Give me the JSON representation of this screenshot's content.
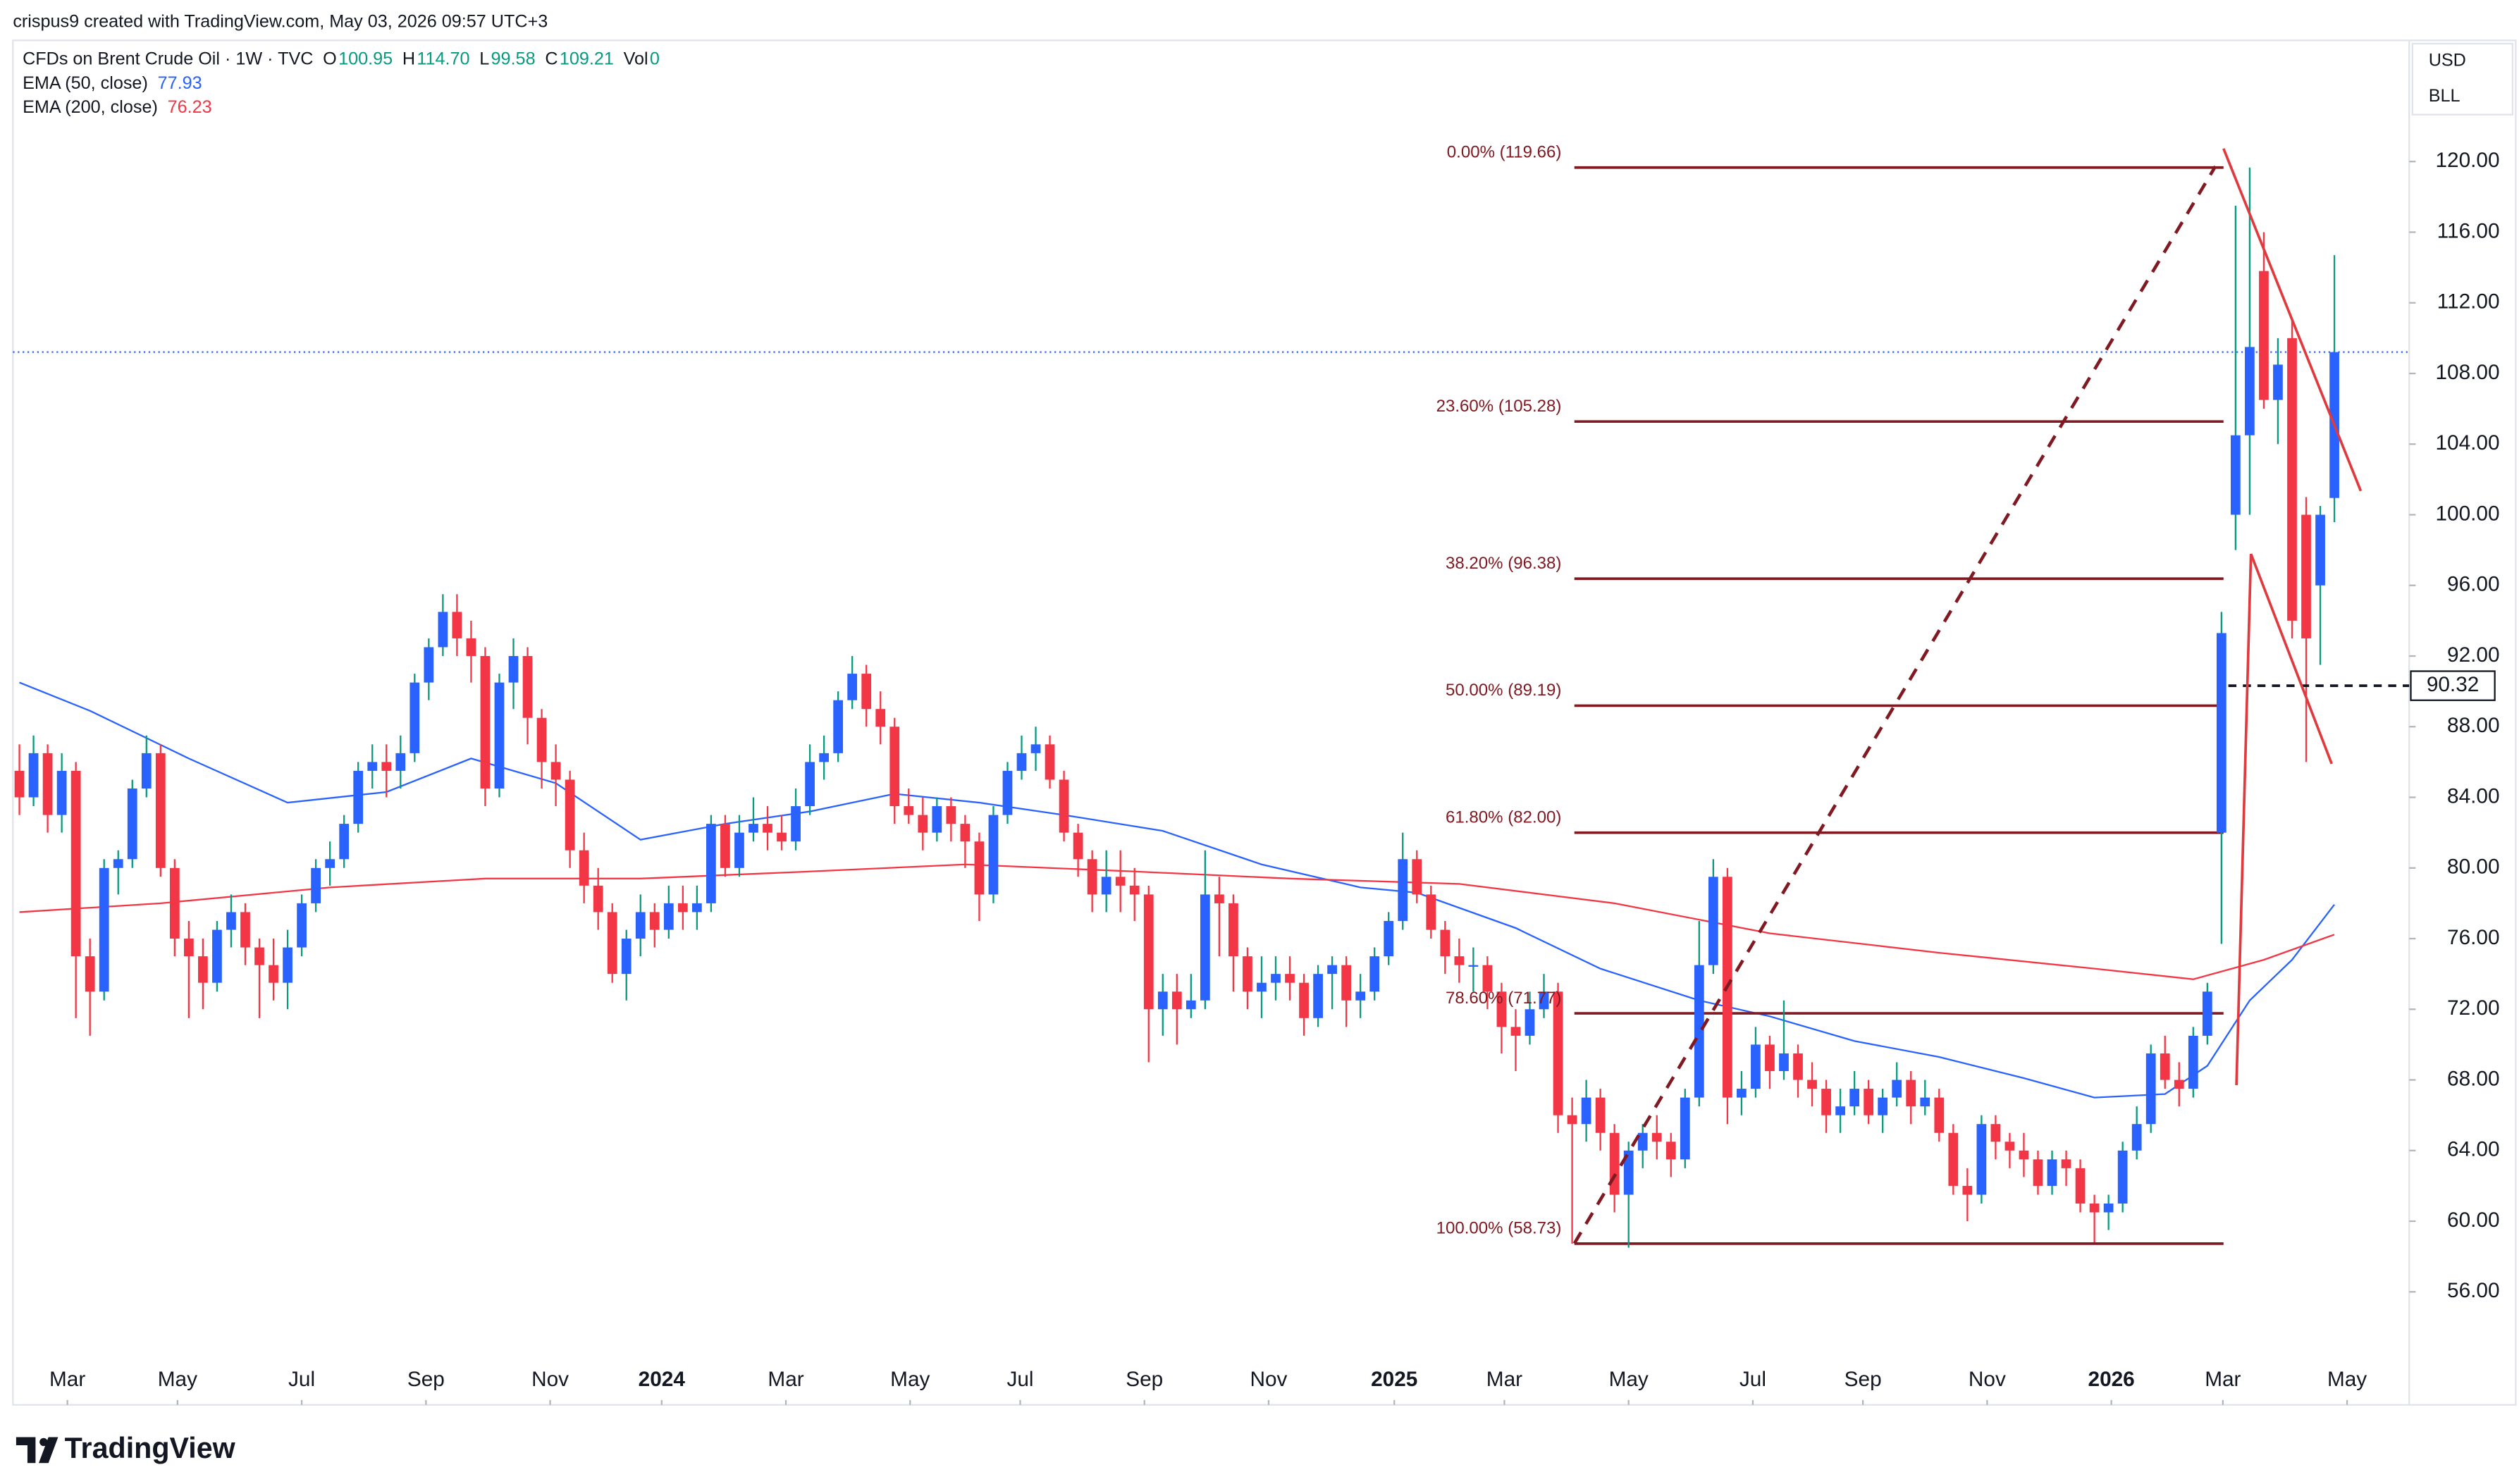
{
  "header": {
    "credit": "crispus9 created with TradingView.com, May 03, 2026 09:57 UTC+3",
    "logo": "TradingView"
  },
  "chart_data": {
    "type": "candlestick",
    "title": "CFDs on Brent Crude Oil · 1W · TVC",
    "currency": "USD",
    "unit": "BLL",
    "legend_keys": [
      "O",
      "H",
      "L",
      "C",
      "Vol"
    ],
    "ohlc_labels": [
      "100.95",
      "114.70",
      "99.58",
      "109.21"
    ],
    "volume": 0,
    "up_color": "#2962ff",
    "down_color": "#f23645",
    "grid": false,
    "xlim": [
      -0.46,
      169.3
    ],
    "ylim": [
      49.6,
      126.86
    ],
    "xticks": [
      {
        "value": 3.4,
        "label": "Mar"
      },
      {
        "value": 11.2,
        "label": "May"
      },
      {
        "value": 20,
        "label": "Jul"
      },
      {
        "value": 28.8,
        "label": "Sep"
      },
      {
        "value": 37.6,
        "label": "Nov"
      },
      {
        "value": 45.5,
        "label": "2024"
      },
      {
        "value": 54.3,
        "label": "Mar"
      },
      {
        "value": 63.1,
        "label": "May"
      },
      {
        "value": 70.9,
        "label": "Jul"
      },
      {
        "value": 79.7,
        "label": "Sep"
      },
      {
        "value": 88.5,
        "label": "Nov"
      },
      {
        "value": 97.4,
        "label": "2025"
      },
      {
        "value": 105.2,
        "label": "Mar"
      },
      {
        "value": 114,
        "label": "May"
      },
      {
        "value": 122.8,
        "label": "Jul"
      },
      {
        "value": 130.6,
        "label": "Sep"
      },
      {
        "value": 139.4,
        "label": "Nov"
      },
      {
        "value": 148.2,
        "label": "2026"
      },
      {
        "value": 156.1,
        "label": "Mar"
      },
      {
        "value": 164.9,
        "label": "May"
      }
    ],
    "yticks": [
      {
        "value": 56,
        "label": "56.00"
      },
      {
        "value": 60,
        "label": "60.00"
      },
      {
        "value": 64,
        "label": "64.00"
      },
      {
        "value": 68,
        "label": "68.00"
      },
      {
        "value": 72,
        "label": "72.00"
      },
      {
        "value": 76,
        "label": "76.00"
      },
      {
        "value": 80,
        "label": "80.00"
      },
      {
        "value": 84,
        "label": "84.00"
      },
      {
        "value": 88,
        "label": "88.00"
      },
      {
        "value": 92,
        "label": "92.00"
      },
      {
        "value": 96,
        "label": "96.00"
      },
      {
        "value": 100,
        "label": "100.00"
      },
      {
        "value": 104,
        "label": "104.00"
      },
      {
        "value": 108,
        "label": "108.00"
      },
      {
        "value": 112,
        "label": "112.00"
      },
      {
        "value": 116,
        "label": "116.00"
      },
      {
        "value": 120,
        "label": "120.00"
      }
    ],
    "ohlc": [
      [
        85.5,
        87,
        83,
        84
      ],
      [
        84,
        87.5,
        83.5,
        86.5
      ],
      [
        86.5,
        87,
        82,
        83
      ],
      [
        83,
        86.5,
        82,
        85.5
      ],
      [
        85.5,
        86,
        71.5,
        75
      ],
      [
        75,
        76,
        70.5,
        73
      ],
      [
        73,
        80.5,
        72.5,
        80
      ],
      [
        80,
        81,
        78.5,
        80.5
      ],
      [
        80.5,
        85,
        80,
        84.5
      ],
      [
        84.5,
        87.5,
        84,
        86.5
      ],
      [
        86.5,
        87,
        79.5,
        80
      ],
      [
        80,
        80.5,
        75,
        76
      ],
      [
        76,
        77,
        71.5,
        75
      ],
      [
        75,
        76,
        72,
        73.5
      ],
      [
        73.5,
        77,
        73,
        76.5
      ],
      [
        76.5,
        78.5,
        75.5,
        77.5
      ],
      [
        77.5,
        78,
        74.5,
        75.5
      ],
      [
        75.5,
        76,
        71.5,
        74.5
      ],
      [
        74.5,
        76,
        72.5,
        73.5
      ],
      [
        73.5,
        76.5,
        72,
        75.5
      ],
      [
        75.5,
        78.5,
        75,
        78
      ],
      [
        78,
        80.5,
        77.5,
        80
      ],
      [
        80,
        81.5,
        79,
        80.5
      ],
      [
        80.5,
        83,
        80,
        82.5
      ],
      [
        82.5,
        86,
        82,
        85.5
      ],
      [
        85.5,
        87,
        84.5,
        86
      ],
      [
        86,
        87,
        84,
        85.5
      ],
      [
        85.5,
        87.5,
        84.5,
        86.5
      ],
      [
        86.5,
        91,
        86,
        90.5
      ],
      [
        90.5,
        93,
        89.5,
        92.5
      ],
      [
        92.5,
        95.5,
        92,
        94.5
      ],
      [
        94.5,
        95.5,
        92,
        93
      ],
      [
        93,
        94,
        90.5,
        92
      ],
      [
        92,
        92.5,
        83.5,
        84.5
      ],
      [
        84.5,
        91,
        84,
        90.5
      ],
      [
        90.5,
        93,
        89,
        92
      ],
      [
        92,
        92.5,
        87,
        88.5
      ],
      [
        88.5,
        89,
        84.5,
        86
      ],
      [
        86,
        87,
        83.5,
        85
      ],
      [
        85,
        85.5,
        80,
        81
      ],
      [
        81,
        82,
        78,
        79
      ],
      [
        79,
        80,
        76.5,
        77.5
      ],
      [
        77.5,
        78,
        73.5,
        74
      ],
      [
        74,
        76.5,
        72.5,
        76
      ],
      [
        76,
        78.5,
        75,
        77.5
      ],
      [
        77.5,
        78,
        75.5,
        76.5
      ],
      [
        76.5,
        79,
        76,
        78
      ],
      [
        78,
        79,
        76.5,
        77.5
      ],
      [
        77.5,
        79,
        76.5,
        78
      ],
      [
        78,
        83,
        77.5,
        82.5
      ],
      [
        82.5,
        83,
        79.5,
        80
      ],
      [
        80,
        83,
        79.5,
        82
      ],
      [
        82,
        84,
        81.5,
        82.5
      ],
      [
        82.5,
        83.5,
        81,
        82
      ],
      [
        82,
        83,
        81,
        81.5
      ],
      [
        81.5,
        84.5,
        81,
        83.5
      ],
      [
        83.5,
        87,
        83,
        86
      ],
      [
        86,
        87.5,
        85,
        86.5
      ],
      [
        86.5,
        90,
        86,
        89.5
      ],
      [
        89.5,
        92,
        89,
        91
      ],
      [
        91,
        91.5,
        88,
        89
      ],
      [
        89,
        90,
        87,
        88
      ],
      [
        88,
        88.5,
        82.5,
        83.5
      ],
      [
        83.5,
        84.5,
        82.5,
        83
      ],
      [
        83,
        84,
        81,
        82
      ],
      [
        82,
        84,
        81.5,
        83.5
      ],
      [
        83.5,
        84,
        81.5,
        82.5
      ],
      [
        82.5,
        83,
        80,
        81.5
      ],
      [
        81.5,
        82,
        77,
        78.5
      ],
      [
        78.5,
        83.5,
        78,
        83
      ],
      [
        83,
        86,
        82.5,
        85.5
      ],
      [
        85.5,
        87.5,
        85,
        86.5
      ],
      [
        86.5,
        88,
        85.5,
        87
      ],
      [
        87,
        87.5,
        84.5,
        85
      ],
      [
        85,
        85.5,
        81.5,
        82
      ],
      [
        82,
        82.5,
        79.5,
        80.5
      ],
      [
        80.5,
        81,
        77.5,
        78.5
      ],
      [
        78.5,
        81,
        77.5,
        79.5
      ],
      [
        79.5,
        81,
        77.5,
        79
      ],
      [
        79,
        80,
        77,
        78.5
      ],
      [
        78.5,
        79,
        69,
        72
      ],
      [
        72,
        74,
        70.5,
        73
      ],
      [
        73,
        74,
        70,
        72
      ],
      [
        72,
        74,
        71.5,
        72.5
      ],
      [
        72.5,
        81,
        72,
        78.5
      ],
      [
        78.5,
        79.5,
        75,
        78
      ],
      [
        78,
        78.5,
        73,
        75
      ],
      [
        75,
        75.5,
        72,
        73
      ],
      [
        73,
        75,
        71.5,
        73.5
      ],
      [
        73.5,
        75,
        72.5,
        74
      ],
      [
        74,
        75,
        72.5,
        73.5
      ],
      [
        73.5,
        74,
        70.5,
        71.5
      ],
      [
        71.5,
        74.5,
        71,
        74
      ],
      [
        74,
        75,
        72,
        74.5
      ],
      [
        74.5,
        75,
        71,
        72.5
      ],
      [
        72.5,
        74,
        71.5,
        73
      ],
      [
        73,
        75.5,
        72.5,
        75
      ],
      [
        75,
        77.5,
        74.5,
        77
      ],
      [
        77,
        82,
        76.5,
        80.5
      ],
      [
        80.5,
        81,
        78,
        78.5
      ],
      [
        78.5,
        79,
        76,
        76.5
      ],
      [
        76.5,
        77,
        74,
        75
      ],
      [
        75,
        76,
        73.5,
        74.5
      ],
      [
        74.5,
        75.5,
        73,
        74.5
      ],
      [
        74.5,
        75,
        72,
        73
      ],
      [
        73,
        73.5,
        69.5,
        71
      ],
      [
        71,
        72,
        68.5,
        70.5
      ],
      [
        70.5,
        73,
        70,
        72
      ],
      [
        72,
        74,
        71.5,
        73
      ],
      [
        73,
        73.5,
        65,
        66
      ],
      [
        66,
        67,
        58.73,
        65.5
      ],
      [
        65.5,
        68,
        64.5,
        67
      ],
      [
        67,
        67.5,
        64,
        65
      ],
      [
        65,
        65.5,
        60.5,
        61.5
      ],
      [
        61.5,
        64.5,
        58.5,
        64
      ],
      [
        64,
        65.5,
        63,
        65
      ],
      [
        65,
        66,
        63.5,
        64.5
      ],
      [
        64.5,
        65,
        62.5,
        63.5
      ],
      [
        63.5,
        67.5,
        63,
        67
      ],
      [
        67,
        77,
        66.5,
        74.5
      ],
      [
        74.5,
        80.5,
        74,
        79.5
      ],
      [
        79.5,
        80,
        65.5,
        67
      ],
      [
        67,
        68.5,
        66,
        67.5
      ],
      [
        67.5,
        71,
        67,
        70
      ],
      [
        70,
        70.5,
        67.5,
        68.5
      ],
      [
        68.5,
        72.5,
        68,
        69.5
      ],
      [
        69.5,
        70,
        67,
        68
      ],
      [
        68,
        69,
        66.5,
        67.5
      ],
      [
        67.5,
        68,
        65,
        66
      ],
      [
        66,
        67.5,
        65,
        66.5
      ],
      [
        66.5,
        68.5,
        66,
        67.5
      ],
      [
        67.5,
        68,
        65.5,
        66
      ],
      [
        66,
        67.5,
        65,
        67
      ],
      [
        67,
        69,
        66.5,
        68
      ],
      [
        68,
        68.5,
        65.5,
        66.5
      ],
      [
        66.5,
        68,
        66,
        67
      ],
      [
        67,
        67.5,
        64.5,
        65
      ],
      [
        65,
        65.5,
        61.5,
        62
      ],
      [
        62,
        63,
        60,
        61.5
      ],
      [
        61.5,
        66,
        61,
        65.5
      ],
      [
        65.5,
        66,
        63.5,
        64.5
      ],
      [
        64.5,
        65,
        63,
        64
      ],
      [
        64,
        65,
        62.5,
        63.5
      ],
      [
        63.5,
        64,
        61.5,
        62
      ],
      [
        62,
        64,
        61.5,
        63.5
      ],
      [
        63.5,
        64,
        62,
        63
      ],
      [
        63,
        63.5,
        60.5,
        61
      ],
      [
        61,
        61.5,
        58.8,
        60.5
      ],
      [
        60.5,
        61.5,
        59.5,
        61
      ],
      [
        61,
        64.5,
        60.5,
        64
      ],
      [
        64,
        66.5,
        63.5,
        65.5
      ],
      [
        65.5,
        70,
        65,
        69.5
      ],
      [
        69.5,
        70.5,
        67.5,
        68
      ],
      [
        68,
        69,
        66.5,
        67.5
      ],
      [
        67.5,
        71,
        67,
        70.5
      ],
      [
        70.5,
        73.5,
        70,
        73
      ],
      [
        82,
        94.5,
        75.7,
        93.3
      ],
      [
        100,
        117.5,
        98,
        104.5
      ],
      [
        104.5,
        119.66,
        100,
        109.5
      ],
      [
        113.8,
        116,
        106,
        106.5
      ],
      [
        106.5,
        110,
        104,
        108.5
      ],
      [
        110,
        111,
        93,
        94
      ],
      [
        100,
        101,
        86,
        93
      ],
      [
        96,
        100.5,
        91.5,
        100
      ],
      [
        100.95,
        114.7,
        99.58,
        109.21
      ]
    ],
    "ema": [
      {
        "name": "EMA (50, close)",
        "color": "#2962ff",
        "x": [
          0,
          5,
          12,
          19,
          26,
          32,
          38,
          44,
          50,
          56,
          62,
          68,
          74,
          81,
          88,
          95,
          99,
          106,
          112,
          119,
          124,
          130,
          136,
          142,
          147,
          152,
          155,
          158,
          161,
          164
        ],
        "values": [
          90.5,
          88.9,
          86.2,
          83.7,
          84.3,
          86.2,
          84.8,
          81.6,
          82.5,
          83.2,
          84.2,
          83.7,
          83,
          82.1,
          80.2,
          78.9,
          78.6,
          76.6,
          74.3,
          72.5,
          71.6,
          70.2,
          69.3,
          68.1,
          67,
          67.2,
          68.8,
          72.5,
          74.8,
          77.93
        ]
      },
      {
        "name": "EMA (200, close)",
        "color": "#f23645",
        "x": [
          0,
          10,
          22,
          33,
          44,
          56,
          67,
          79,
          90,
          102,
          113,
          124,
          136,
          147,
          154,
          159,
          164
        ],
        "values": [
          77.5,
          78,
          78.9,
          79.4,
          79.4,
          79.8,
          80.2,
          79.8,
          79.4,
          79.1,
          78,
          76.3,
          75.2,
          74.3,
          73.7,
          74.8,
          76.23
        ]
      }
    ],
    "fib": [
      {
        "label": "0.00% (119.66)",
        "value": 119.66
      },
      {
        "label": "23.60% (105.28)",
        "value": 105.28
      },
      {
        "label": "38.20% (96.38)",
        "value": 96.38
      },
      {
        "label": "50.00% (89.19)",
        "value": 89.19
      },
      {
        "label": "61.80% (82.00)",
        "value": 82
      },
      {
        "label": "78.60% (71.77)",
        "value": 71.77
      },
      {
        "label": "100.00% (58.73)",
        "value": 58.73
      }
    ],
    "fib_color": "#801922",
    "level": 90.32
  }
}
